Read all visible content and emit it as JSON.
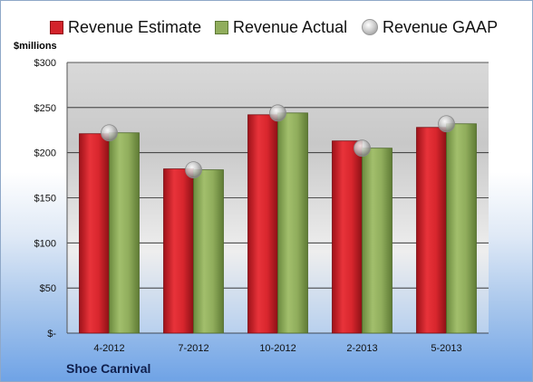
{
  "legend": {
    "estimate": "Revenue Estimate",
    "actual": "Revenue Actual",
    "gaap": "Revenue GAAP"
  },
  "units_label": "$millions",
  "company_label": "Shoe Carnival",
  "colors": {
    "estimate": "#d3232b",
    "actual": "#90ad5c",
    "gaap": "#c8c8c8"
  },
  "chart_data": {
    "type": "bar",
    "categories": [
      "4-2012",
      "7-2012",
      "10-2012",
      "2-2013",
      "5-2013"
    ],
    "series": [
      {
        "name": "Revenue Estimate",
        "values": [
          221,
          182,
          242,
          213,
          228
        ]
      },
      {
        "name": "Revenue Actual",
        "values": [
          222,
          181,
          244,
          205,
          232
        ]
      },
      {
        "name": "Revenue GAAP",
        "values": [
          222,
          181,
          244,
          205,
          232
        ]
      }
    ],
    "ylim": [
      0,
      300
    ],
    "yticks": [
      0,
      50,
      100,
      150,
      200,
      250,
      300
    ],
    "ytick_labels": [
      "$-",
      "$50",
      "$100",
      "$150",
      "$200",
      "$250",
      "$300"
    ],
    "grid": true,
    "legend_position": "top"
  }
}
